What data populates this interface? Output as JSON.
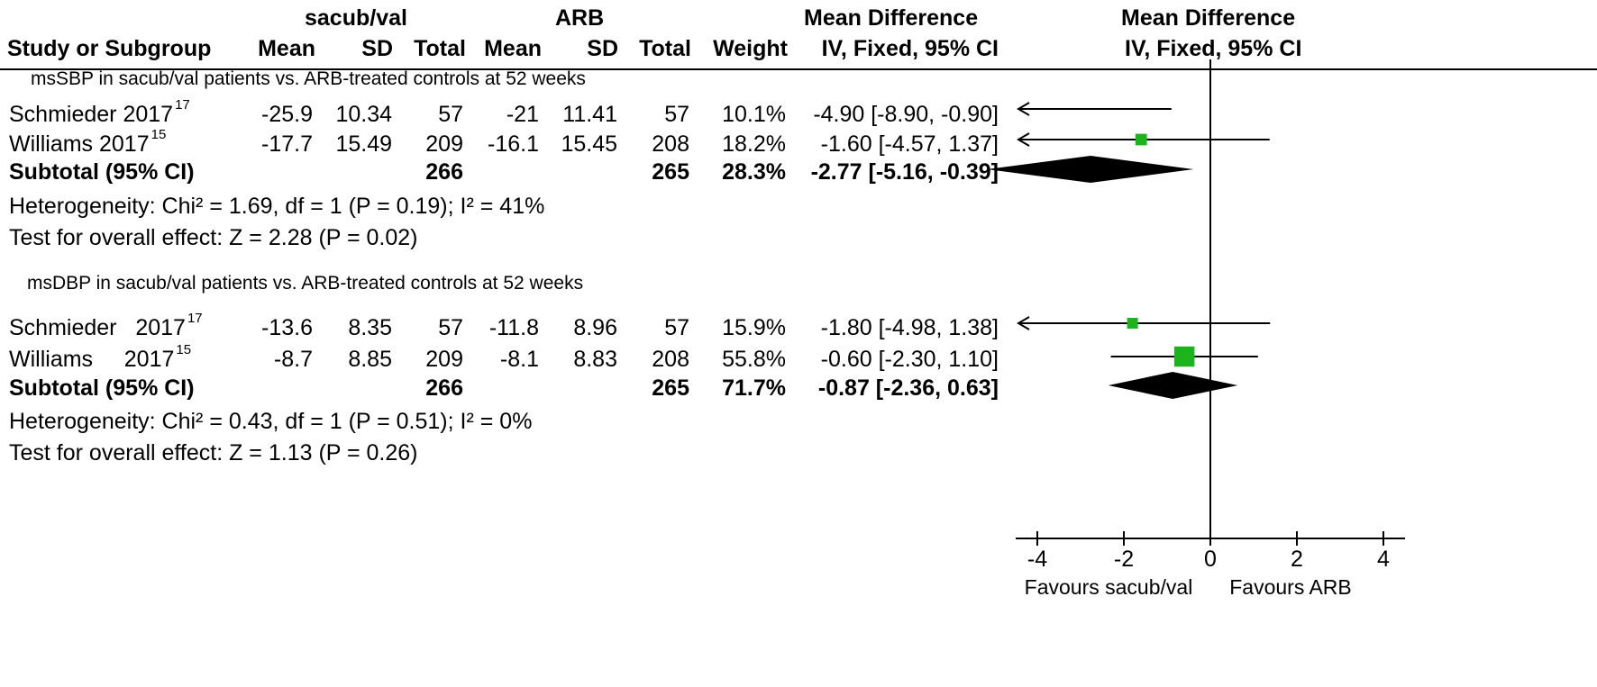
{
  "header": {
    "group1": "sacub/val",
    "group2": "ARB",
    "md_title": "Mean Difference",
    "plot_title": "Mean Difference",
    "col_study": "Study or Subgroup",
    "col_mean1": "Mean",
    "col_sd1": "SD",
    "col_total1": "Total",
    "col_mean2": "Mean",
    "col_sd2": "SD",
    "col_total2": "Total",
    "col_weight": "Weight",
    "col_ci": "IV, Fixed, 95% CI",
    "plot_ci": "IV, Fixed, 95% CI"
  },
  "subgroups": [
    {
      "title": "msSBP in sacub/val patients vs. ARB-treated controls at 52 weeks",
      "studies": [
        {
          "name": "Schmieder 2017",
          "ref": "17",
          "mean1": "-25.9",
          "sd1": "10.34",
          "total1": "57",
          "mean2": "-21",
          "sd2": "11.41",
          "total2": "57",
          "weight": "10.1%",
          "ci": "-4.90 [-8.90, -0.90]"
        },
        {
          "name": "Williams  2017",
          "ref": "15",
          "mean1": "-17.7",
          "sd1": "15.49",
          "total1": "209",
          "mean2": "-16.1",
          "sd2": "15.45",
          "total2": "208",
          "weight": "18.2%",
          "ci": "-1.60 [-4.57, 1.37]"
        }
      ],
      "subtotal": {
        "label": "Subtotal (95% CI)",
        "total1": "266",
        "total2": "265",
        "weight": "28.3%",
        "ci": "-2.77 [-5.16, -0.39]"
      },
      "heterogeneity": "Heterogeneity: Chi² = 1.69, df = 1 (P = 0.19); I² = 41%",
      "overall": "Test for overall effect: Z = 2.28 (P = 0.02)"
    },
    {
      "title": "msDBP in sacub/val patients vs. ARB-treated controls at 52 weeks",
      "studies": [
        {
          "name": "Schmieder   2017",
          "ref": "17",
          "mean1": "-13.6",
          "sd1": "8.35",
          "total1": "57",
          "mean2": "-11.8",
          "sd2": "8.96",
          "total2": "57",
          "weight": "15.9%",
          "ci": "-1.80 [-4.98, 1.38]"
        },
        {
          "name": "Williams     2017",
          "ref": "15",
          "mean1": "-8.7",
          "sd1": "8.85",
          "total1": "209",
          "mean2": "-8.1",
          "sd2": "8.83",
          "total2": "208",
          "weight": "55.8%",
          "ci": "-0.60 [-2.30, 1.10]"
        }
      ],
      "subtotal": {
        "label": "Subtotal (95% CI)",
        "total1": "266",
        "total2": "265",
        "weight": "71.7%",
        "ci": "-0.87 [-2.36, 0.63]"
      },
      "heterogeneity": "Heterogeneity: Chi² = 0.43, df = 1 (P = 0.51); I² = 0%",
      "overall": "Test for overall effect: Z = 1.13 (P = 0.26)"
    }
  ],
  "chart_data": {
    "type": "forest",
    "xlim": [
      -4.5,
      4.5
    ],
    "ticks": [
      "-4",
      "-2",
      "0",
      "2",
      "4"
    ],
    "favours_left": "Favours sacub/val",
    "favours_right": "Favours ARB",
    "study_color": "#1db31d",
    "diamond_color": "#000000",
    "rows": [
      {
        "study": "Schmieder 2017",
        "md": -4.9,
        "lo": -8.9,
        "hi": -0.9,
        "weight": 10.1,
        "kind": "study"
      },
      {
        "study": "Williams 2017",
        "md": -1.6,
        "lo": -4.57,
        "hi": 1.37,
        "weight": 18.2,
        "kind": "study"
      },
      {
        "study": "Subtotal (95% CI)",
        "md": -2.77,
        "lo": -5.16,
        "hi": -0.39,
        "kind": "subtotal"
      },
      {
        "study": "Schmieder 2017",
        "md": -1.8,
        "lo": -4.98,
        "hi": 1.38,
        "weight": 15.9,
        "kind": "study"
      },
      {
        "study": "Williams 2017",
        "md": -0.6,
        "lo": -2.3,
        "hi": 1.1,
        "weight": 55.8,
        "kind": "study"
      },
      {
        "study": "Subtotal (95% CI)",
        "md": -0.87,
        "lo": -2.36,
        "hi": 0.63,
        "kind": "subtotal"
      }
    ]
  }
}
